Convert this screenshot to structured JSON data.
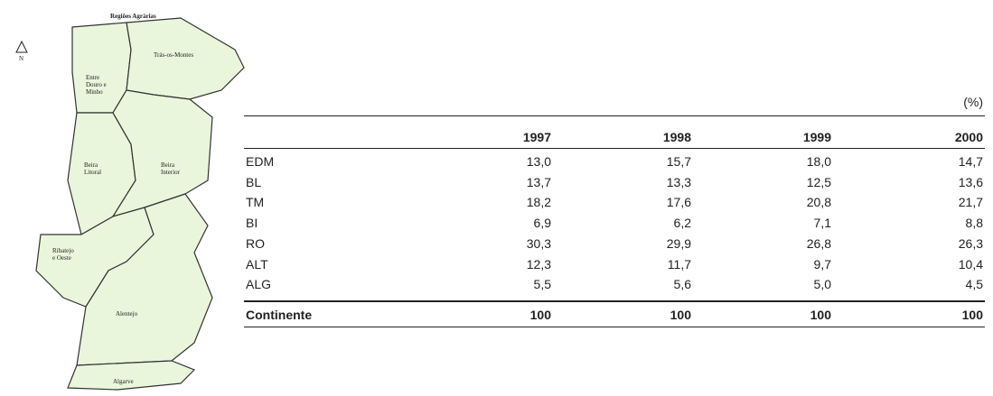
{
  "map": {
    "title": "Regiões Agrárias",
    "north": "N",
    "regions": [
      {
        "id": "EDM",
        "lines": [
          "Entre",
          "Douro e",
          "Minho"
        ]
      },
      {
        "id": "TM",
        "lines": [
          "Trás-os-Montes"
        ]
      },
      {
        "id": "BL",
        "lines": [
          "Beira",
          "Litoral"
        ]
      },
      {
        "id": "BI",
        "lines": [
          "Beira",
          "Interior"
        ]
      },
      {
        "id": "RO",
        "lines": [
          "Ribatejo",
          "e Oeste"
        ]
      },
      {
        "id": "ALT",
        "lines": [
          "Alentejo"
        ]
      },
      {
        "id": "ALG",
        "lines": [
          "Algarve"
        ]
      }
    ]
  },
  "table": {
    "unit": "(%)",
    "header": [
      "1997",
      "1998",
      "1999",
      "2000"
    ],
    "rows": [
      [
        "EDM",
        "13,0",
        "15,7",
        "18,0",
        "14,7"
      ],
      [
        "BL",
        "13,7",
        "13,3",
        "12,5",
        "13,6"
      ],
      [
        "TM",
        "18,2",
        "17,6",
        "20,8",
        "21,7"
      ],
      [
        "BI",
        "6,9",
        "6,2",
        "7,1",
        "8,8"
      ],
      [
        "RO",
        "30,3",
        "29,9",
        "26,8",
        "26,3"
      ],
      [
        "ALT",
        "12,3",
        "11,7",
        "9,7",
        "10,4"
      ],
      [
        "ALG",
        "5,5",
        "5,6",
        "5,0",
        "4,5"
      ]
    ],
    "total": [
      "Continente",
      "100",
      "100",
      "100",
      "100"
    ]
  }
}
